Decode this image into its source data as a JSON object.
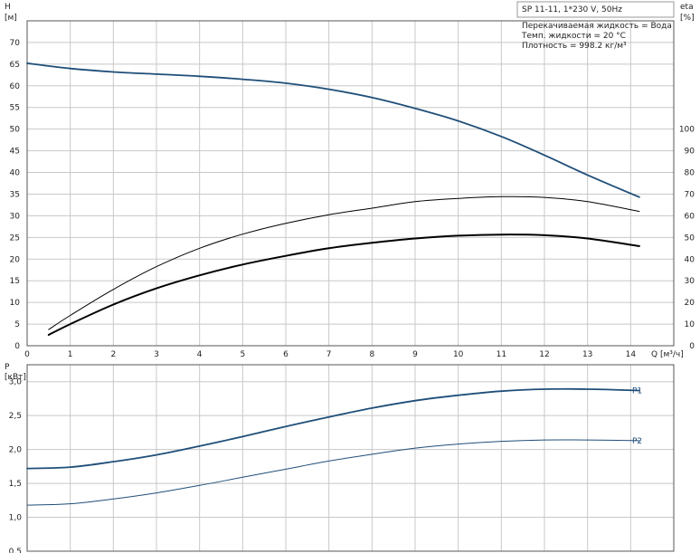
{
  "chart_data": [
    {
      "type": "line",
      "title": "SP 11-11, 1*230 V, 50Hz",
      "fluid_info": [
        "Перекачиваемая жидкость = Вода",
        "Темп. жидкости = 20 °C",
        "Плотность = 998.2 кг/м³"
      ],
      "xlabel": "Q [м³/ч]",
      "ylabel_left_line1": "H",
      "ylabel_left_line2": "[м]",
      "ylabel_right_line1": "eta",
      "ylabel_right_line2": "[%]",
      "xlim": [
        0,
        15
      ],
      "ylim_left": [
        0,
        75
      ],
      "ylim_right": [
        0,
        150
      ],
      "x_ticks": [
        "0",
        "1",
        "2",
        "3",
        "4",
        "5",
        "6",
        "7",
        "8",
        "9",
        "10",
        "11",
        "12",
        "13",
        "14"
      ],
      "y_ticks_left": [
        "0",
        "5",
        "10",
        "15",
        "20",
        "25",
        "30",
        "35",
        "40",
        "45",
        "50",
        "55",
        "60",
        "65",
        "70"
      ],
      "y_ticks_right": [
        "0",
        "10",
        "20",
        "30",
        "40",
        "50",
        "60",
        "70",
        "80",
        "90",
        "100"
      ],
      "grid": true,
      "series": [
        {
          "color": "#1f4e79",
          "axis": "left",
          "width": 1.8,
          "x": [
            0,
            1,
            2,
            3,
            4,
            5,
            6,
            7,
            8,
            9,
            10,
            11,
            12,
            13,
            14.2
          ],
          "y": [
            65.2,
            64.0,
            63.2,
            62.7,
            62.2,
            61.5,
            60.6,
            59.2,
            57.3,
            54.8,
            51.9,
            48.3,
            44.0,
            39.4,
            34.3
          ]
        },
        {
          "color": "#000000",
          "axis": "right",
          "width": 1.0,
          "x": [
            0.5,
            1,
            2,
            3,
            4,
            5,
            6,
            7,
            8,
            9,
            10,
            11,
            12,
            13,
            14.2
          ],
          "y": [
            7.5,
            14.0,
            26.0,
            36.5,
            45.0,
            51.5,
            56.5,
            60.5,
            63.5,
            66.5,
            68.0,
            68.8,
            68.5,
            66.5,
            62.0
          ]
        },
        {
          "color": "#000000",
          "axis": "right",
          "width": 2.0,
          "x": [
            0.5,
            1,
            2,
            3,
            4,
            5,
            6,
            7,
            8,
            9,
            10,
            11,
            12,
            13,
            14.2
          ],
          "y": [
            5.0,
            10.0,
            19.0,
            26.5,
            32.5,
            37.5,
            41.5,
            45.0,
            47.5,
            49.5,
            50.8,
            51.3,
            51.0,
            49.5,
            46.0
          ]
        }
      ]
    },
    {
      "type": "line",
      "xlim": [
        0,
        15
      ],
      "ylabel_line1": "P",
      "ylabel_line2": "[кВт]",
      "ylim": [
        0.5,
        3.25
      ],
      "y_ticks": [
        "0,5",
        "1,0",
        "1,5",
        "2,0",
        "2,5",
        "3,0"
      ],
      "y_tick_values": [
        0.5,
        1.0,
        1.5,
        2.0,
        2.5,
        3.0
      ],
      "grid": true,
      "series": [
        {
          "name": "P1",
          "color": "#1f4e79",
          "width": 1.8,
          "x": [
            0,
            1,
            2,
            3,
            4,
            5,
            6,
            7,
            8,
            9,
            10,
            11,
            12,
            13,
            14.2
          ],
          "y": [
            1.72,
            1.74,
            1.82,
            1.92,
            2.05,
            2.19,
            2.34,
            2.48,
            2.61,
            2.72,
            2.8,
            2.86,
            2.89,
            2.89,
            2.87
          ]
        },
        {
          "name": "P2",
          "color": "#1f4e79",
          "width": 1.0,
          "x": [
            0,
            1,
            2,
            3,
            4,
            5,
            6,
            7,
            8,
            9,
            10,
            11,
            12,
            13,
            14.2
          ],
          "y": [
            1.18,
            1.2,
            1.27,
            1.36,
            1.47,
            1.59,
            1.71,
            1.83,
            1.93,
            2.02,
            2.08,
            2.12,
            2.14,
            2.14,
            2.13
          ]
        }
      ]
    }
  ]
}
